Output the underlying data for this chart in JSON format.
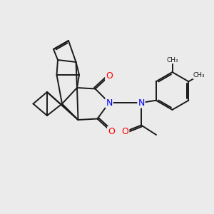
{
  "background_color": "#ebebeb",
  "bond_color": "#1a1a1a",
  "N_color": "#0000ff",
  "O_color": "#ff0000",
  "line_width": 1.4,
  "font_size_atoms": 9,
  "figsize": [
    3.0,
    3.0
  ],
  "dpi": 100,
  "xlim": [
    0,
    10
  ],
  "ylim": [
    0,
    10
  ]
}
